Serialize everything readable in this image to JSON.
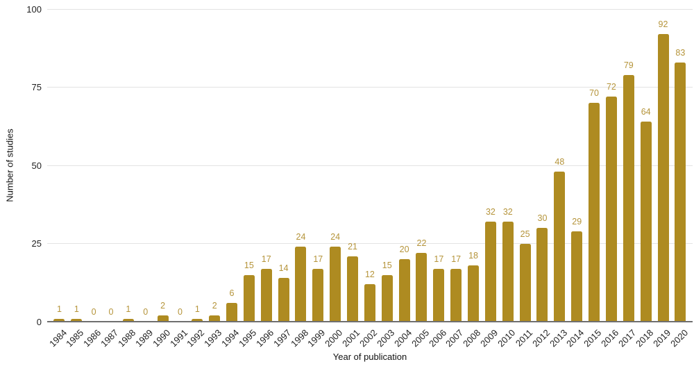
{
  "chart_data": {
    "type": "bar",
    "title": "",
    "xlabel": "Year of publication",
    "ylabel": "Number of studies",
    "categories": [
      "1984",
      "1985",
      "1986",
      "1987",
      "1988",
      "1989",
      "1990",
      "1991",
      "1992",
      "1993",
      "1994",
      "1995",
      "1996",
      "1997",
      "1998",
      "1999",
      "2000",
      "2001",
      "2002",
      "2003",
      "2004",
      "2005",
      "2006",
      "2007",
      "2008",
      "2009",
      "2010",
      "2011",
      "2012",
      "2013",
      "2014",
      "2015",
      "2016",
      "2017",
      "2018",
      "2019",
      "2020"
    ],
    "values": [
      1,
      1,
      0,
      0,
      1,
      0,
      2,
      0,
      1,
      2,
      6,
      15,
      17,
      14,
      24,
      17,
      24,
      21,
      12,
      15,
      20,
      22,
      17,
      17,
      18,
      32,
      32,
      25,
      30,
      48,
      29,
      70,
      72,
      79,
      64,
      92,
      83
    ],
    "data_labels_shown": true,
    "ylim": [
      0,
      100
    ],
    "yticks": [
      0,
      25,
      50,
      75,
      100
    ],
    "grid": "horizontal",
    "legend": "none",
    "colors": {
      "bar": "#ae8b21",
      "value_label": "#b5943a",
      "gridline": "#e3e3e3",
      "axis_line": "#6f6f6f",
      "tick_text": "#1f1f1f",
      "background": "#ffffff"
    }
  }
}
